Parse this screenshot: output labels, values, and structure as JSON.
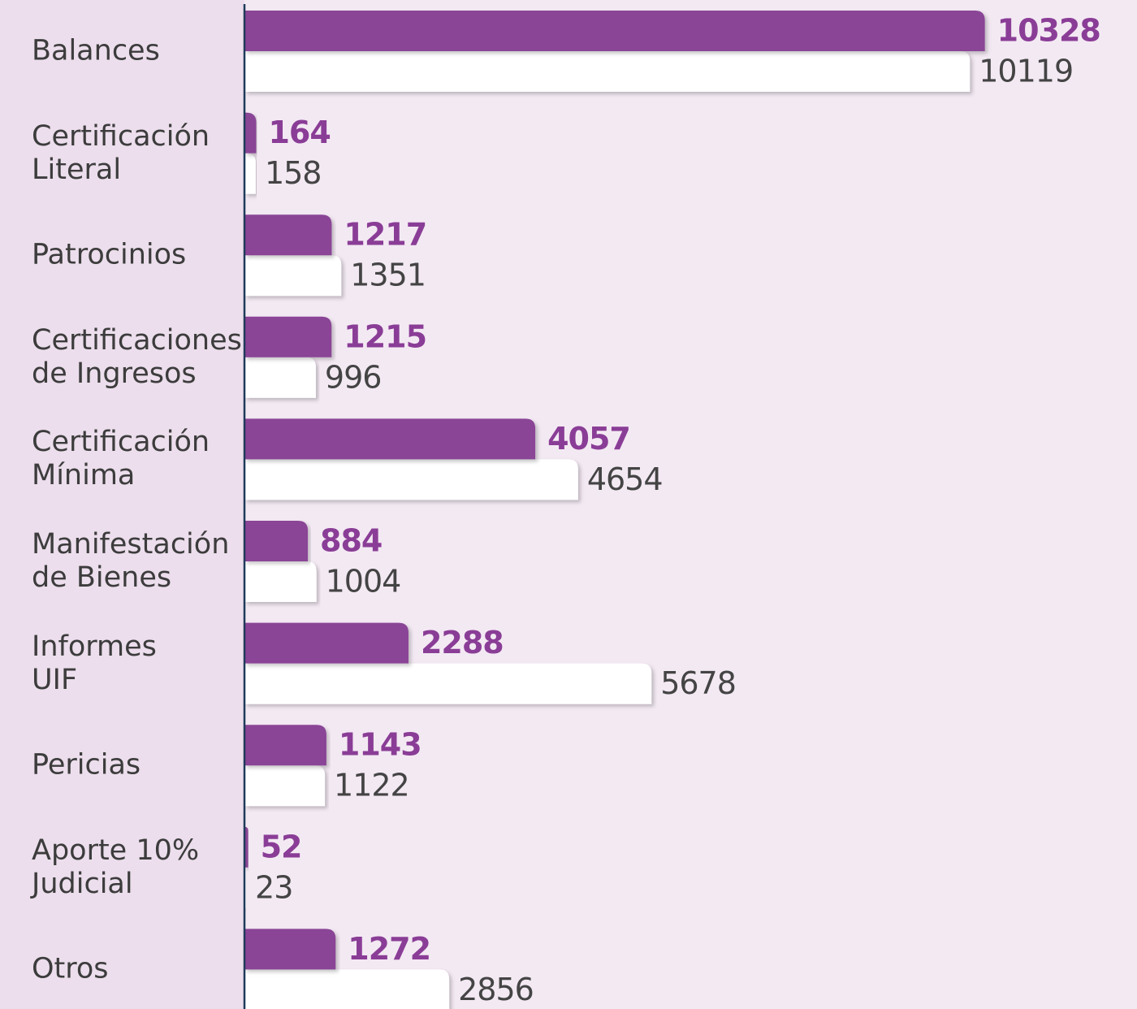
{
  "chart_data": {
    "type": "bar",
    "orientation": "horizontal",
    "categories": [
      "Balances",
      "Certificación\nLiteral",
      "Patrocinios",
      "Certificaciones\nde Ingresos",
      "Certificación\nMínima",
      "Manifestación\nde Bienes",
      "Informes\nUIF",
      "Pericias",
      "Aporte 10%\nJudicial",
      "Otros"
    ],
    "series": [
      {
        "color": "#8a4596",
        "values": [
          10328,
          164,
          1217,
          1215,
          4057,
          884,
          2288,
          1143,
          52,
          1272
        ]
      },
      {
        "color": "#ffffff",
        "values": [
          10119,
          158,
          1351,
          996,
          4654,
          1004,
          5678,
          1122,
          23,
          2856
        ]
      }
    ],
    "xlim": [
      0,
      12450
    ]
  }
}
